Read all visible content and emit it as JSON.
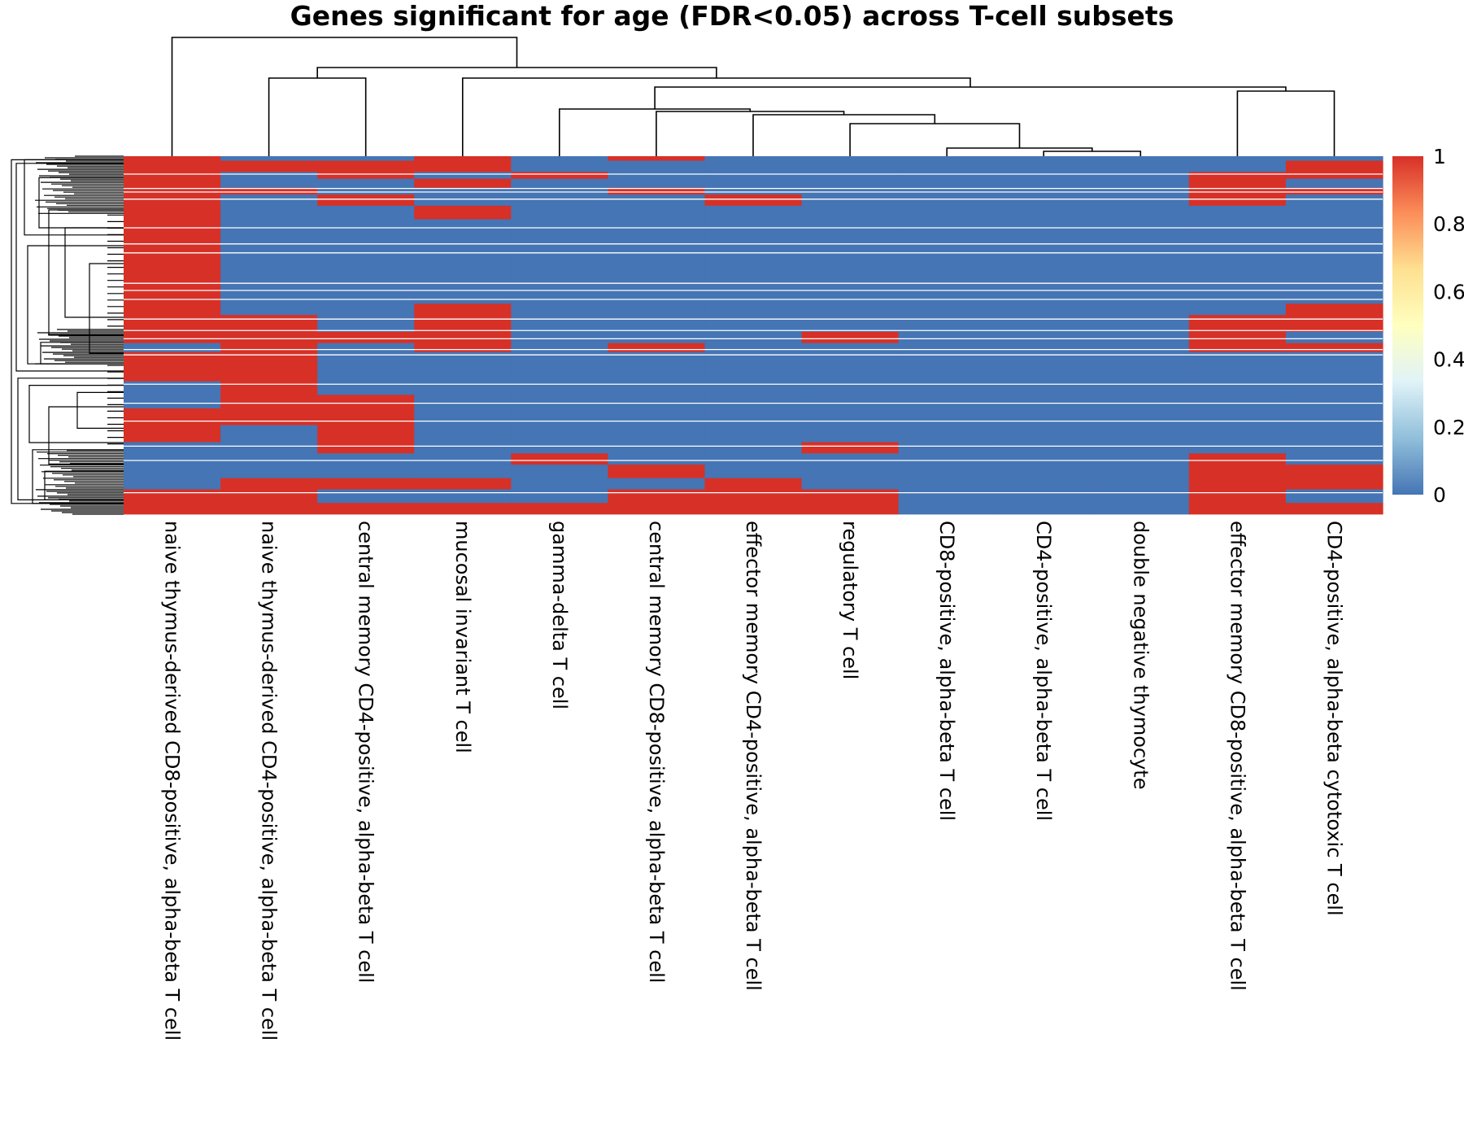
{
  "chart_data": {
    "type": "heatmap",
    "title": "Genes significant for age (FDR<0.05) across T-cell subsets",
    "columns": [
      "naive thymus-derived CD8-positive, alpha-beta T cell",
      "naive thymus-derived CD4-positive, alpha-beta T cell",
      "central memory CD4-positive, alpha-beta T cell",
      "mucosal invariant T cell",
      "gamma-delta T cell",
      "central memory CD8-positive, alpha-beta T cell",
      "effector memory CD4-positive, alpha-beta T cell",
      "regulatory T cell",
      "CD8-positive, alpha-beta T cell",
      "CD4-positive, alpha-beta T cell",
      "double negative thymocyte",
      "effector memory CD8-positive, alpha-beta T cell",
      "CD4-positive, alpha-beta cytotoxic T cell"
    ],
    "value_range": [
      0,
      1
    ],
    "colorbar": {
      "ticks": [
        "0",
        "0.2",
        "0.4",
        "0.6",
        "0.8",
        "1"
      ],
      "tick_values": [
        0,
        0.2,
        0.4,
        0.6,
        0.8,
        1
      ],
      "colors": [
        "#4575b4",
        "#91bfdb",
        "#e0f3f8",
        "#ffffbf",
        "#fee090",
        "#fc8d59",
        "#d73027"
      ]
    },
    "row_blocks": [
      {
        "rows": 4,
        "values": [
          1,
          0,
          0,
          1,
          0,
          1,
          0,
          0,
          0,
          0,
          0,
          0,
          0
        ]
      },
      {
        "rows": 10,
        "values": [
          1,
          1,
          1,
          1,
          0,
          0,
          0,
          0,
          0,
          0,
          0,
          0,
          1
        ]
      },
      {
        "rows": 6,
        "values": [
          1,
          0,
          1,
          0,
          1,
          0,
          0,
          0,
          0,
          0,
          0,
          1,
          1
        ]
      },
      {
        "rows": 8,
        "values": [
          1,
          0,
          0,
          1,
          0,
          0,
          0,
          0,
          0,
          0,
          0,
          1,
          0
        ]
      },
      {
        "rows": 6,
        "values": [
          1,
          1,
          0,
          0,
          0,
          1,
          0,
          0,
          0,
          0,
          0,
          1,
          1
        ]
      },
      {
        "rows": 10,
        "values": [
          1,
          0,
          1,
          0,
          0,
          0,
          1,
          0,
          0,
          0,
          0,
          1,
          0
        ]
      },
      {
        "rows": 12,
        "values": [
          1,
          0,
          0,
          1,
          0,
          0,
          0,
          0,
          0,
          0,
          0,
          0,
          0
        ]
      },
      {
        "rows": 75,
        "values": [
          1,
          0,
          0,
          0,
          0,
          0,
          0,
          0,
          0,
          0,
          0,
          0,
          0
        ]
      },
      {
        "rows": 10,
        "values": [
          1,
          0,
          0,
          1,
          0,
          0,
          0,
          0,
          0,
          0,
          0,
          0,
          1
        ]
      },
      {
        "rows": 15,
        "values": [
          1,
          1,
          0,
          1,
          0,
          0,
          0,
          0,
          0,
          0,
          0,
          1,
          1
        ]
      },
      {
        "rows": 10,
        "values": [
          1,
          1,
          1,
          1,
          0,
          0,
          0,
          1,
          0,
          0,
          0,
          1,
          0
        ]
      },
      {
        "rows": 8,
        "values": [
          0,
          1,
          0,
          1,
          0,
          1,
          0,
          0,
          0,
          0,
          0,
          1,
          1
        ]
      },
      {
        "rows": 26,
        "values": [
          1,
          1,
          0,
          0,
          0,
          0,
          0,
          0,
          0,
          0,
          0,
          0,
          0
        ]
      },
      {
        "rows": 12,
        "values": [
          0,
          1,
          0,
          0,
          0,
          0,
          0,
          0,
          0,
          0,
          0,
          0,
          0
        ]
      },
      {
        "rows": 12,
        "values": [
          0,
          1,
          1,
          0,
          0,
          0,
          0,
          0,
          0,
          0,
          0,
          0,
          0
        ]
      },
      {
        "rows": 15,
        "values": [
          1,
          1,
          1,
          0,
          0,
          0,
          0,
          0,
          0,
          0,
          0,
          0,
          0
        ]
      },
      {
        "rows": 15,
        "values": [
          1,
          0,
          1,
          0,
          0,
          0,
          0,
          0,
          0,
          0,
          0,
          0,
          0
        ]
      },
      {
        "rows": 10,
        "values": [
          0,
          0,
          1,
          0,
          0,
          0,
          0,
          1,
          0,
          0,
          0,
          0,
          0
        ]
      },
      {
        "rows": 10,
        "values": [
          0,
          0,
          0,
          0,
          1,
          0,
          0,
          0,
          0,
          0,
          0,
          1,
          0
        ]
      },
      {
        "rows": 12,
        "values": [
          0,
          0,
          0,
          0,
          0,
          1,
          0,
          0,
          0,
          0,
          0,
          1,
          1
        ]
      },
      {
        "rows": 10,
        "values": [
          0,
          1,
          1,
          1,
          0,
          0,
          1,
          0,
          0,
          0,
          0,
          1,
          1
        ]
      },
      {
        "rows": 12,
        "values": [
          1,
          1,
          0,
          0,
          0,
          1,
          1,
          1,
          0,
          0,
          0,
          1,
          0
        ]
      },
      {
        "rows": 10,
        "values": [
          1,
          1,
          1,
          1,
          1,
          1,
          1,
          1,
          0,
          0,
          0,
          1,
          1
        ]
      }
    ],
    "column_order_note": ""
  }
}
